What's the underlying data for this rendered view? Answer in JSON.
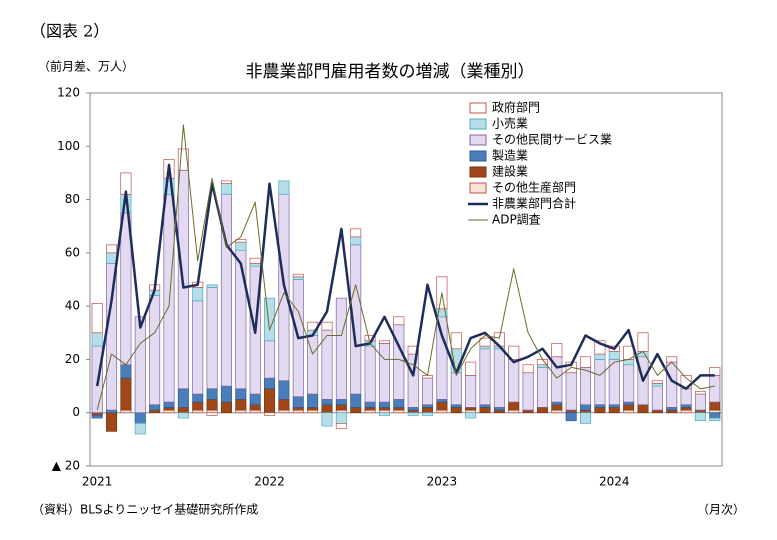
{
  "chart_data": {
    "type": "bar",
    "stacked": true,
    "figure_label": "（図表 2）",
    "title": "非農業部門雇用者数の増減（業種別）",
    "y_label": "（前月差、万人）",
    "x_label": "（月次）",
    "source": "（資料）BLSよりニッセイ基礎研究所作成",
    "categories": [
      "2021",
      null,
      null,
      null,
      null,
      null,
      null,
      null,
      null,
      null,
      null,
      null,
      "2022",
      null,
      null,
      null,
      null,
      null,
      null,
      null,
      null,
      null,
      null,
      null,
      "2023",
      null,
      null,
      null,
      null,
      null,
      null,
      null,
      null,
      null,
      null,
      null,
      "2024",
      null,
      null,
      null,
      null,
      null,
      null,
      null
    ],
    "ylim": [
      -20,
      120
    ],
    "yticks": [
      {
        "value": -20,
        "label": "▲ 20"
      },
      0,
      20,
      40,
      60,
      80,
      100,
      120
    ],
    "grid": false,
    "legend": "upper right",
    "series": [
      {
        "name": "その他生産部門",
        "type": "bar",
        "color": "#fde4d6",
        "edgecolor": "#c0504d",
        "values": [
          0,
          0,
          1,
          0,
          0,
          1,
          0,
          1,
          1,
          0,
          1,
          1,
          0,
          1,
          1,
          1,
          0,
          1,
          0,
          1,
          1,
          1,
          0,
          0,
          1,
          0,
          1,
          0,
          0,
          1,
          0,
          0,
          1,
          0,
          0,
          0,
          0,
          1,
          0,
          0,
          0,
          1,
          0,
          1
        ]
      },
      {
        "name": "建設業",
        "type": "bar",
        "color": "#a0471a",
        "edgecolor": "#7a3510",
        "values": [
          -1,
          -7,
          12,
          0,
          1,
          1,
          2,
          3,
          4,
          4,
          4,
          2,
          9,
          4,
          1,
          1,
          3,
          2,
          2,
          1,
          1,
          1,
          1,
          2,
          3,
          2,
          1,
          2,
          1,
          3,
          1,
          2,
          2,
          1,
          1,
          2,
          2,
          2,
          3,
          1,
          1,
          1,
          1,
          3
        ]
      },
      {
        "name": "製造業",
        "type": "bar",
        "color": "#4a7ebb",
        "edgecolor": "#2f5c93",
        "values": [
          -1,
          1,
          5,
          -4,
          2,
          2,
          7,
          3,
          4,
          6,
          4,
          4,
          4,
          7,
          4,
          5,
          2,
          2,
          5,
          2,
          2,
          3,
          1,
          1,
          1,
          1,
          0,
          1,
          1,
          0,
          0,
          0,
          1,
          -3,
          2,
          1,
          1,
          1,
          0,
          0,
          1,
          1,
          0,
          -2
        ]
      },
      {
        "name": "その他民間サービス業",
        "type": "bar",
        "color": "#e3d9f0",
        "edgecolor": "#8064a2",
        "values": [
          25,
          55,
          57,
          36,
          41,
          78,
          82,
          35,
          38,
          72,
          52,
          48,
          14,
          70,
          44,
          22,
          26,
          38,
          56,
          21,
          22,
          28,
          20,
          10,
          31,
          12,
          12,
          21,
          22,
          16,
          14,
          15,
          17,
          14,
          14,
          17,
          17,
          14,
          18,
          9,
          17,
          6,
          6,
          10
        ]
      },
      {
        "name": "小売業",
        "type": "bar",
        "color": "#b7dee8",
        "edgecolor": "#4bacc6",
        "values": [
          5,
          4,
          7,
          -4,
          2,
          6,
          -2,
          5,
          1,
          4,
          3,
          1,
          16,
          5,
          1,
          2,
          -5,
          -4,
          3,
          2,
          -1,
          0,
          -1,
          -1,
          3,
          9,
          -2,
          1,
          1,
          0,
          0,
          1,
          0,
          0,
          -4,
          2,
          3,
          2,
          2,
          1,
          0,
          0,
          -3,
          -1
        ]
      },
      {
        "name": "政府部門",
        "type": "bar",
        "color": "#ffffff",
        "edgecolor": "#c0504d",
        "values": [
          11,
          3,
          8,
          0,
          2,
          7,
          8,
          2,
          -1,
          1,
          1,
          2,
          -1,
          0,
          1,
          3,
          3,
          -2,
          3,
          2,
          1,
          3,
          3,
          1,
          12,
          6,
          5,
          3,
          5,
          5,
          3,
          2,
          5,
          4,
          4,
          5,
          2,
          5,
          7,
          1,
          2,
          5,
          1,
          3
        ]
      },
      {
        "name": "非農業部門合計",
        "type": "line",
        "color": "#1f2d5a",
        "width": 2.5,
        "values": [
          10,
          42,
          83,
          32,
          46,
          93,
          47,
          48,
          86,
          63,
          56,
          30,
          86,
          48,
          28,
          29,
          38,
          69,
          25,
          26,
          36,
          25,
          14,
          48,
          29,
          15,
          28,
          30,
          25,
          19,
          21,
          24,
          17,
          18,
          29,
          26,
          24,
          31,
          12,
          22,
          12,
          9,
          14,
          14
        ]
      },
      {
        "name": "ADP調査",
        "type": "line",
        "color": "#6b6b2a",
        "width": 1,
        "values": [
          1,
          22,
          18,
          26,
          30,
          40,
          108,
          57,
          88,
          62,
          66,
          79,
          31,
          45,
          38,
          22,
          29,
          29,
          48,
          26,
          20,
          20,
          18,
          14,
          45,
          14,
          24,
          29,
          28,
          54,
          30,
          20,
          13,
          17,
          16,
          14,
          19,
          20,
          23,
          14,
          19,
          13,
          9,
          10
        ]
      }
    ]
  }
}
